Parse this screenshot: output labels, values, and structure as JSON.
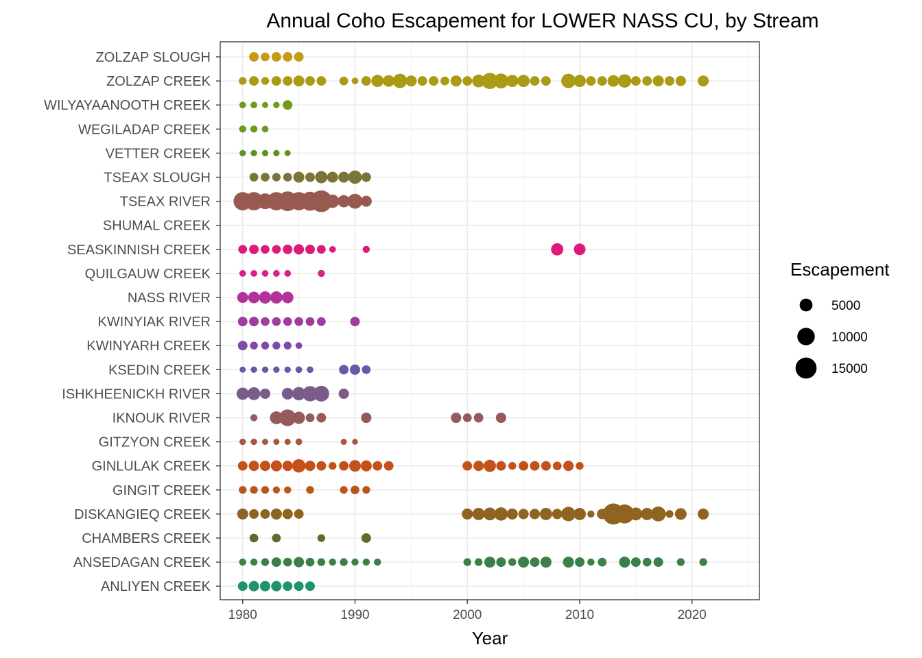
{
  "chart_data": {
    "type": "scatter",
    "title": "Annual Coho Escapement for LOWER NASS CU, by Stream",
    "xlabel": "Year",
    "ylabel": "",
    "xlim": [
      1978,
      2026
    ],
    "x_ticks": [
      1980,
      1990,
      2000,
      2010,
      2020
    ],
    "grid": true,
    "legend": {
      "title": "Escapement",
      "placement": "right",
      "entries": [
        {
          "label": "5000",
          "value": 5000
        },
        {
          "label": "10000",
          "value": 10000
        },
        {
          "label": "15000",
          "value": 15000
        }
      ]
    },
    "categories": [
      "ZOLZAP SLOUGH",
      "ZOLZAP CREEK",
      "WILYAYAANOOTH CREEK",
      "WEGILADAP CREEK",
      "VETTER CREEK",
      "TSEAX SLOUGH",
      "TSEAX RIVER",
      "SHUMAL CREEK",
      "SEASKINNISH CREEK",
      "QUILGAUW CREEK",
      "NASS RIVER",
      "KWINYIAK RIVER",
      "KWINYARH CREEK",
      "KSEDIN CREEK",
      "ISHKHEENICKH RIVER",
      "IKNOUK RIVER",
      "GITZYON CREEK",
      "GINLULAK CREEK",
      "GINGIT CREEK",
      "DISKANGIEQ CREEK",
      "CHAMBERS CREEK",
      "ANSEDAGAN CREEK",
      "ANLIYEN CREEK"
    ],
    "series": [
      {
        "stream": "ZOLZAP SLOUGH",
        "color": "#C59A14",
        "points": [
          [
            1981,
            2500
          ],
          [
            1982,
            2000
          ],
          [
            1983,
            2500
          ],
          [
            1984,
            2500
          ],
          [
            1985,
            2500
          ]
        ]
      },
      {
        "stream": "ZOLZAP CREEK",
        "color": "#AA9A14",
        "points": [
          [
            1980,
            1500
          ],
          [
            1981,
            2500
          ],
          [
            1982,
            1500
          ],
          [
            1983,
            2500
          ],
          [
            1984,
            2500
          ],
          [
            1985,
            3500
          ],
          [
            1986,
            2500
          ],
          [
            1987,
            2500
          ],
          [
            1989,
            2000
          ],
          [
            1990,
            1000
          ],
          [
            1991,
            2500
          ],
          [
            1992,
            4500
          ],
          [
            1993,
            4000
          ],
          [
            1994,
            6500
          ],
          [
            1995,
            3500
          ],
          [
            1996,
            2500
          ],
          [
            1997,
            2500
          ],
          [
            1998,
            2000
          ],
          [
            1999,
            3500
          ],
          [
            2000,
            2500
          ],
          [
            2001,
            5000
          ],
          [
            2002,
            8500
          ],
          [
            2003,
            7000
          ],
          [
            2004,
            4500
          ],
          [
            2005,
            4500
          ],
          [
            2006,
            2500
          ],
          [
            2007,
            2500
          ],
          [
            2009,
            6500
          ],
          [
            2010,
            4500
          ],
          [
            2011,
            2500
          ],
          [
            2012,
            2500
          ],
          [
            2013,
            4000
          ],
          [
            2014,
            5500
          ],
          [
            2015,
            2500
          ],
          [
            2016,
            2500
          ],
          [
            2017,
            3500
          ],
          [
            2018,
            2500
          ],
          [
            2019,
            3000
          ],
          [
            2021,
            3500
          ]
        ]
      },
      {
        "stream": "WILYAYAANOOTH CREEK",
        "color": "#6F9A18",
        "points": [
          [
            1980,
            1000
          ],
          [
            1981,
            1000
          ],
          [
            1982,
            800
          ],
          [
            1983,
            900
          ],
          [
            1984,
            2500
          ]
        ]
      },
      {
        "stream": "WEGILADAP CREEK",
        "color": "#6A9A1E",
        "points": [
          [
            1980,
            1200
          ],
          [
            1981,
            1200
          ],
          [
            1982,
            1000
          ]
        ]
      },
      {
        "stream": "VETTER CREEK",
        "color": "#5E9226",
        "points": [
          [
            1980,
            900
          ],
          [
            1981,
            900
          ],
          [
            1982,
            900
          ],
          [
            1983,
            900
          ],
          [
            1984,
            800
          ]
        ]
      },
      {
        "stream": "TSEAX SLOUGH",
        "color": "#7A7438",
        "points": [
          [
            1981,
            2000
          ],
          [
            1982,
            2000
          ],
          [
            1983,
            1800
          ],
          [
            1984,
            2000
          ],
          [
            1985,
            3500
          ],
          [
            1986,
            2500
          ],
          [
            1987,
            4500
          ],
          [
            1988,
            3500
          ],
          [
            1989,
            3500
          ],
          [
            1990,
            5500
          ],
          [
            1991,
            2500
          ]
        ]
      },
      {
        "stream": "TSEAX RIVER",
        "color": "#985A50",
        "points": [
          [
            1980,
            11000
          ],
          [
            1981,
            11000
          ],
          [
            1982,
            8000
          ],
          [
            1983,
            11000
          ],
          [
            1984,
            13000
          ],
          [
            1985,
            11000
          ],
          [
            1986,
            12000
          ],
          [
            1987,
            16000
          ],
          [
            1988,
            5500
          ],
          [
            1989,
            4500
          ],
          [
            1990,
            7000
          ],
          [
            1991,
            3500
          ]
        ]
      },
      {
        "stream": "SHUMAL CREEK",
        "color": "#9A5A50",
        "points": []
      },
      {
        "stream": "SEASKINNISH CREEK",
        "color": "#DD1A7A",
        "points": [
          [
            1980,
            2000
          ],
          [
            1981,
            2500
          ],
          [
            1982,
            2000
          ],
          [
            1983,
            2000
          ],
          [
            1984,
            2500
          ],
          [
            1985,
            3000
          ],
          [
            1986,
            2500
          ],
          [
            1987,
            2000
          ],
          [
            1988,
            1000
          ],
          [
            1991,
            1200
          ],
          [
            2008,
            4500
          ],
          [
            2010,
            4000
          ]
        ]
      },
      {
        "stream": "QUILGAUW CREEK",
        "color": "#D8228A",
        "points": [
          [
            1980,
            1000
          ],
          [
            1981,
            1000
          ],
          [
            1982,
            1000
          ],
          [
            1983,
            1000
          ],
          [
            1984,
            1000
          ],
          [
            1987,
            1200
          ]
        ]
      },
      {
        "stream": "NASS RIVER",
        "color": "#B2329A",
        "points": [
          [
            1980,
            3500
          ],
          [
            1981,
            4000
          ],
          [
            1982,
            4500
          ],
          [
            1983,
            4500
          ],
          [
            1984,
            4000
          ]
        ]
      },
      {
        "stream": "KWINYIAK RIVER",
        "color": "#9E3CA0",
        "points": [
          [
            1980,
            2500
          ],
          [
            1981,
            2500
          ],
          [
            1982,
            2000
          ],
          [
            1983,
            2000
          ],
          [
            1984,
            2000
          ],
          [
            1985,
            2000
          ],
          [
            1986,
            2000
          ],
          [
            1987,
            2000
          ],
          [
            1990,
            2500
          ]
        ]
      },
      {
        "stream": "KWINYARH CREEK",
        "color": "#8048A8",
        "points": [
          [
            1980,
            2500
          ],
          [
            1981,
            1500
          ],
          [
            1982,
            1500
          ],
          [
            1983,
            1500
          ],
          [
            1984,
            1500
          ],
          [
            1985,
            1000
          ]
        ]
      },
      {
        "stream": "KSEDIN CREEK",
        "color": "#6A58A6",
        "points": [
          [
            1980,
            800
          ],
          [
            1981,
            900
          ],
          [
            1982,
            900
          ],
          [
            1983,
            900
          ],
          [
            1984,
            900
          ],
          [
            1985,
            1000
          ],
          [
            1986,
            1000
          ],
          [
            1989,
            2500
          ],
          [
            1990,
            3000
          ],
          [
            1991,
            2000
          ]
        ]
      },
      {
        "stream": "ISHKHEENICKH RIVER",
        "color": "#7A5C8A",
        "points": [
          [
            1980,
            4500
          ],
          [
            1981,
            5000
          ],
          [
            1982,
            3000
          ],
          [
            1984,
            4000
          ],
          [
            1985,
            5500
          ],
          [
            1986,
            7500
          ],
          [
            1987,
            8000
          ],
          [
            1989,
            3000
          ]
        ]
      },
      {
        "stream": "IKNOUK RIVER",
        "color": "#945A5C",
        "points": [
          [
            1981,
            1200
          ],
          [
            1983,
            5000
          ],
          [
            1984,
            9000
          ],
          [
            1985,
            4500
          ],
          [
            1986,
            2000
          ],
          [
            1987,
            2500
          ],
          [
            1991,
            3000
          ],
          [
            1999,
            3000
          ],
          [
            2000,
            2000
          ],
          [
            2001,
            2500
          ],
          [
            2003,
            3000
          ]
        ]
      },
      {
        "stream": "GITZYON CREEK",
        "color": "#A4583E",
        "points": [
          [
            1980,
            900
          ],
          [
            1981,
            900
          ],
          [
            1982,
            800
          ],
          [
            1983,
            800
          ],
          [
            1984,
            800
          ],
          [
            1985,
            1000
          ],
          [
            1989,
            800
          ],
          [
            1990,
            700
          ]
        ]
      },
      {
        "stream": "GINLULAK CREEK",
        "color": "#C4501A",
        "points": [
          [
            1980,
            2500
          ],
          [
            1981,
            3000
          ],
          [
            1982,
            3000
          ],
          [
            1983,
            3500
          ],
          [
            1984,
            3000
          ],
          [
            1985,
            5500
          ],
          [
            1986,
            3000
          ],
          [
            1987,
            2500
          ],
          [
            1988,
            1500
          ],
          [
            1989,
            2500
          ],
          [
            1990,
            4000
          ],
          [
            1991,
            3500
          ],
          [
            1992,
            2500
          ],
          [
            1993,
            2500
          ],
          [
            2000,
            2500
          ],
          [
            2001,
            3000
          ],
          [
            2002,
            4500
          ],
          [
            2003,
            2500
          ],
          [
            2004,
            1500
          ],
          [
            2005,
            2500
          ],
          [
            2006,
            2500
          ],
          [
            2007,
            2500
          ],
          [
            2008,
            2000
          ],
          [
            2009,
            3000
          ],
          [
            2010,
            1500
          ]
        ]
      },
      {
        "stream": "GINGIT CREEK",
        "color": "#BC5618",
        "points": [
          [
            1980,
            1500
          ],
          [
            1981,
            1500
          ],
          [
            1982,
            1500
          ],
          [
            1983,
            1200
          ],
          [
            1984,
            1200
          ],
          [
            1986,
            1500
          ],
          [
            1989,
            1500
          ],
          [
            1990,
            2000
          ],
          [
            1991,
            1500
          ]
        ]
      },
      {
        "stream": "DISKANGIEQ CREEK",
        "color": "#8E6420",
        "points": [
          [
            1980,
            3500
          ],
          [
            1981,
            2500
          ],
          [
            1982,
            2500
          ],
          [
            1983,
            3500
          ],
          [
            1984,
            3000
          ],
          [
            1985,
            2500
          ],
          [
            2000,
            3500
          ],
          [
            2001,
            4500
          ],
          [
            2002,
            5000
          ],
          [
            2003,
            5500
          ],
          [
            2004,
            3500
          ],
          [
            2005,
            3000
          ],
          [
            2006,
            3000
          ],
          [
            2007,
            4500
          ],
          [
            2008,
            3000
          ],
          [
            2009,
            6500
          ],
          [
            2010,
            4500
          ],
          [
            2011,
            1200
          ],
          [
            2012,
            3000
          ],
          [
            2013,
            15000
          ],
          [
            2014,
            12000
          ],
          [
            2015,
            5000
          ],
          [
            2016,
            4500
          ],
          [
            2017,
            7000
          ],
          [
            2018,
            1500
          ],
          [
            2019,
            4000
          ],
          [
            2021,
            3500
          ]
        ]
      },
      {
        "stream": "CHAMBERS CREEK",
        "color": "#5E6B2C",
        "points": [
          [
            1981,
            2000
          ],
          [
            1983,
            2000
          ],
          [
            1987,
            1500
          ],
          [
            1991,
            2500
          ]
        ]
      },
      {
        "stream": "ANSEDAGAN CREEK",
        "color": "#3A8048",
        "points": [
          [
            1980,
            1200
          ],
          [
            1981,
            1200
          ],
          [
            1982,
            1500
          ],
          [
            1983,
            2500
          ],
          [
            1984,
            2000
          ],
          [
            1985,
            3000
          ],
          [
            1986,
            2000
          ],
          [
            1987,
            1500
          ],
          [
            1988,
            1200
          ],
          [
            1989,
            1500
          ],
          [
            1990,
            1200
          ],
          [
            1991,
            1200
          ],
          [
            1992,
            1200
          ],
          [
            2000,
            1500
          ],
          [
            2001,
            1500
          ],
          [
            2002,
            3500
          ],
          [
            2003,
            2500
          ],
          [
            2004,
            1500
          ],
          [
            2005,
            3500
          ],
          [
            2006,
            2500
          ],
          [
            2007,
            3500
          ],
          [
            2009,
            3500
          ],
          [
            2010,
            2500
          ],
          [
            2011,
            1200
          ],
          [
            2012,
            2000
          ],
          [
            2014,
            3500
          ],
          [
            2015,
            2500
          ],
          [
            2016,
            2000
          ],
          [
            2017,
            2500
          ],
          [
            2019,
            1500
          ],
          [
            2021,
            1500
          ]
        ]
      },
      {
        "stream": "ANLIYEN CREEK",
        "color": "#1E9468",
        "points": [
          [
            1980,
            2500
          ],
          [
            1981,
            3000
          ],
          [
            1982,
            3000
          ],
          [
            1983,
            3000
          ],
          [
            1984,
            2500
          ],
          [
            1985,
            2500
          ],
          [
            1986,
            2500
          ]
        ]
      }
    ]
  }
}
